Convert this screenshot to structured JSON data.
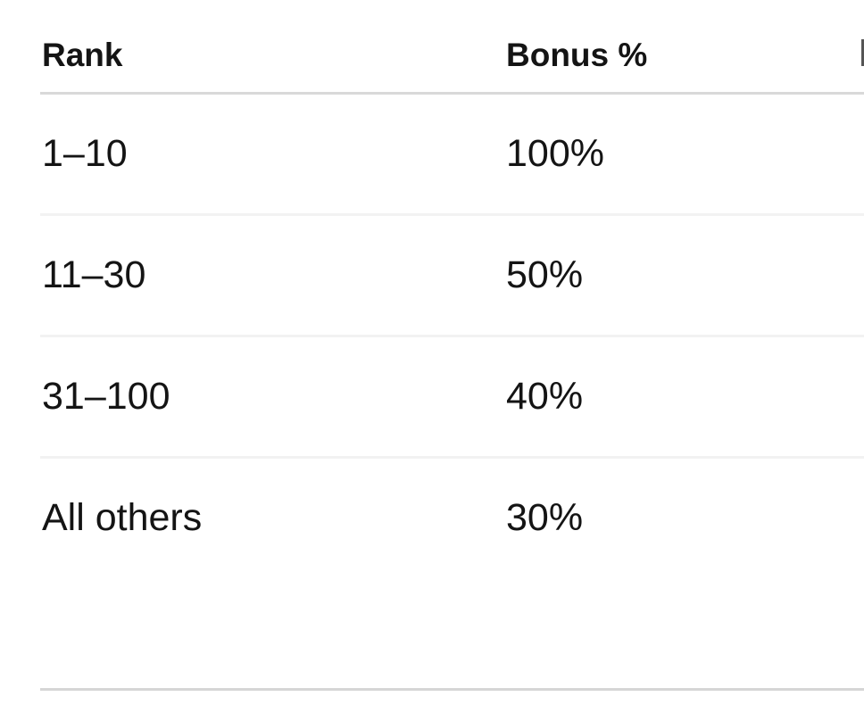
{
  "table": {
    "header": {
      "rank_label": "Rank",
      "bonus_label": "Bonus %"
    },
    "rows": [
      {
        "rank": "1–10",
        "bonus": "100%"
      },
      {
        "rank": "11–30",
        "bonus": "50%"
      },
      {
        "rank": "31–100",
        "bonus": "40%"
      },
      {
        "rank": "All others",
        "bonus": "30%"
      }
    ],
    "clipped_third_header_visible": true,
    "colors": {
      "background": "#ffffff",
      "text": "#141414",
      "header_divider": "#d9d9d9",
      "row_divider": "#f2f2f2",
      "bottom_divider": "#d6d6d6"
    }
  }
}
